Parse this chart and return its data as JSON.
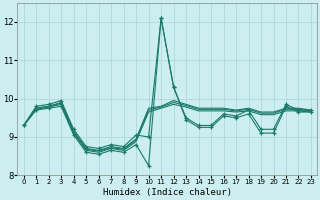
{
  "xlabel": "Humidex (Indice chaleur)",
  "background_color": "#cceef0",
  "grid_color": "#aad4d6",
  "line_color": "#1a7a6a",
  "xlim": [
    -0.5,
    23.5
  ],
  "ylim": [
    8,
    12.5
  ],
  "yticks": [
    8,
    9,
    10,
    11,
    12
  ],
  "xtick_labels": [
    "0",
    "1",
    "2",
    "3",
    "4",
    "5",
    "6",
    "7",
    "8",
    "9",
    "10",
    "11",
    "12",
    "13",
    "14",
    "15",
    "16",
    "17",
    "18",
    "19",
    "20",
    "21",
    "22",
    "23"
  ],
  "series": [
    [
      9.3,
      9.8,
      9.85,
      9.95,
      9.2,
      8.75,
      8.7,
      8.8,
      8.75,
      9.05,
      9.0,
      12.1,
      10.3,
      9.5,
      9.3,
      9.3,
      9.6,
      9.55,
      9.7,
      9.2,
      9.2,
      9.85,
      9.7,
      9.7
    ],
    [
      9.3,
      9.75,
      9.8,
      9.9,
      9.15,
      8.7,
      8.65,
      8.75,
      8.7,
      8.95,
      9.75,
      9.8,
      9.95,
      9.85,
      9.75,
      9.75,
      9.75,
      9.7,
      9.75,
      9.65,
      9.65,
      9.75,
      9.75,
      9.7
    ],
    [
      9.3,
      9.75,
      9.8,
      9.88,
      9.12,
      8.68,
      8.63,
      8.72,
      8.68,
      8.92,
      9.7,
      9.78,
      9.9,
      9.82,
      9.72,
      9.72,
      9.72,
      9.68,
      9.72,
      9.62,
      9.62,
      9.72,
      9.72,
      9.68
    ],
    [
      9.3,
      9.72,
      9.78,
      9.85,
      9.1,
      8.65,
      8.6,
      8.7,
      8.65,
      8.88,
      9.65,
      9.75,
      9.85,
      9.78,
      9.68,
      9.68,
      9.68,
      9.65,
      9.68,
      9.58,
      9.58,
      9.68,
      9.68,
      9.65
    ],
    [
      9.3,
      9.7,
      9.75,
      9.8,
      9.05,
      8.6,
      8.55,
      8.65,
      8.6,
      8.8,
      8.25,
      12.1,
      10.3,
      9.45,
      9.25,
      9.25,
      9.55,
      9.5,
      9.6,
      9.1,
      9.1,
      9.8,
      9.65,
      9.65
    ]
  ],
  "markers": [
    true,
    false,
    false,
    false,
    true
  ]
}
